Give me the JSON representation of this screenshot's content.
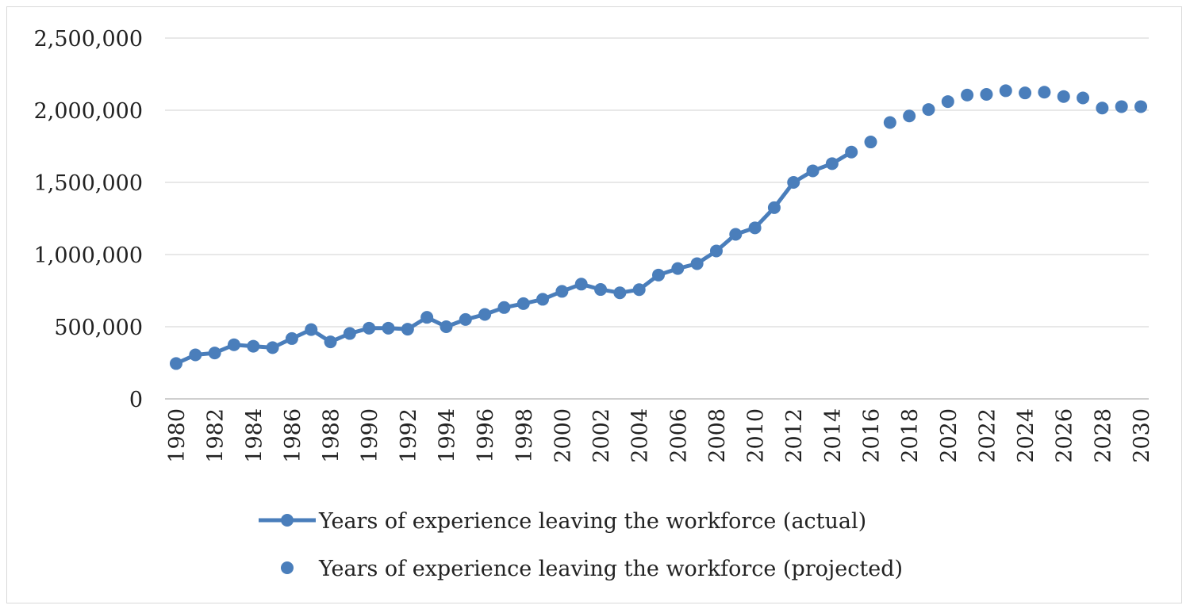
{
  "chart_data": {
    "type": "line",
    "title": "",
    "xlabel": "",
    "ylabel": "",
    "ylim": [
      0,
      2500000
    ],
    "yticks": [
      0,
      500000,
      1000000,
      1500000,
      2000000,
      2500000
    ],
    "ytick_labels": [
      "0",
      "500,000",
      "1,000,000",
      "1,500,000",
      "2,000,000",
      "2,500,000"
    ],
    "xtick_labels": [
      "1980",
      "1982",
      "1984",
      "1986",
      "1988",
      "1990",
      "1992",
      "1994",
      "1996",
      "1998",
      "2000",
      "2002",
      "2004",
      "2006",
      "2008",
      "2010",
      "2012",
      "2014",
      "2016",
      "2018",
      "2020",
      "2022",
      "2024",
      "2026",
      "2028",
      "2030"
    ],
    "grid": true,
    "legend_position": "bottom",
    "color": "#4a7ebb",
    "series": [
      {
        "name": "Years of experience leaving the workforce (actual)",
        "style": "line-markers",
        "x": [
          1980,
          1981,
          1982,
          1983,
          1984,
          1985,
          1986,
          1987,
          1988,
          1989,
          1990,
          1991,
          1992,
          1993,
          1994,
          1995,
          1996,
          1997,
          1998,
          1999,
          2000,
          2001,
          2002,
          2003,
          2004,
          2005,
          2006,
          2007,
          2008,
          2009,
          2010,
          2011,
          2012,
          2013,
          2014,
          2015
        ],
        "values": [
          245000,
          305000,
          318000,
          375000,
          365000,
          355000,
          418000,
          480000,
          395000,
          453000,
          490000,
          490000,
          483000,
          565000,
          500000,
          550000,
          585000,
          633000,
          660000,
          690000,
          745000,
          795000,
          758000,
          735000,
          757000,
          858000,
          903000,
          937000,
          1025000,
          1140000,
          1185000,
          1325000,
          1500000,
          1580000,
          1630000,
          1710000
        ]
      },
      {
        "name": "Years of experience leaving the workforce (projected)",
        "style": "markers",
        "x": [
          2016,
          2017,
          2018,
          2019,
          2020,
          2021,
          2022,
          2023,
          2024,
          2025,
          2026,
          2027,
          2028,
          2029,
          2030
        ],
        "values": [
          1780000,
          1915000,
          1960000,
          2005000,
          2060000,
          2105000,
          2110000,
          2135000,
          2120000,
          2125000,
          2095000,
          2085000,
          2015000,
          2025000,
          2025000
        ]
      }
    ]
  }
}
